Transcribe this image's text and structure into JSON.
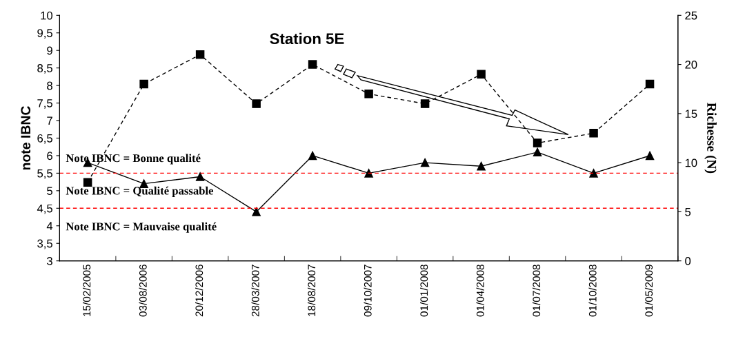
{
  "chart_data": {
    "type": "line",
    "title": "Station 5E",
    "ylabel": "note IBNC",
    "y2label": "Richesse (N)",
    "categories": [
      "15/02/2005",
      "03/08/2006",
      "20/12/2006",
      "28/03/2007",
      "18/08/2007",
      "09/10/2007",
      "01/01/2008",
      "01/04/2008",
      "01/07/2008",
      "01/10/2008",
      "01/05/2009"
    ],
    "series": [
      {
        "color": "#000000",
        "marker": "triangle",
        "line_style": "solid",
        "values": [
          5.8,
          5.2,
          5.4,
          4.4,
          6.0,
          5.5,
          5.8,
          5.7,
          6.1,
          5.5,
          6.0
        ]
      },
      {
        "color": "#000000",
        "marker": "square",
        "line_style": "dashed",
        "axis": "y2",
        "values": [
          8,
          18,
          21,
          16,
          20,
          17,
          16,
          19,
          12,
          13,
          18
        ]
      }
    ],
    "ylim": [
      3,
      10
    ],
    "yticks": [
      3,
      {
        "value": 3.5,
        "label": "3,5"
      },
      4,
      {
        "value": 4.5,
        "label": "4,5"
      },
      5,
      {
        "value": 5.5,
        "label": "5,5"
      },
      6,
      {
        "value": 6.5,
        "label": "6,5"
      },
      7,
      {
        "value": 7.5,
        "label": "7,5"
      },
      8,
      {
        "value": 8.5,
        "label": "8,5"
      },
      9,
      {
        "value": 9.5,
        "label": "9,5"
      },
      10
    ],
    "y2lim": [
      0,
      25
    ],
    "y2ticks": [
      0,
      5,
      10,
      15,
      20,
      25
    ],
    "ref_lines": [
      {
        "axis": "y",
        "value": 5.5,
        "color": "#ff0000",
        "line_style": "dashed"
      },
      {
        "axis": "y",
        "value": 4.5,
        "color": "#ff0000",
        "line_style": "dashed"
      }
    ],
    "annotations": [
      "Note IBNC = Bonne qualité",
      "Note IBNC = Qualité passable",
      "Note IBNC = Mauvaise qualité"
    ],
    "grid": false,
    "legend": false
  }
}
